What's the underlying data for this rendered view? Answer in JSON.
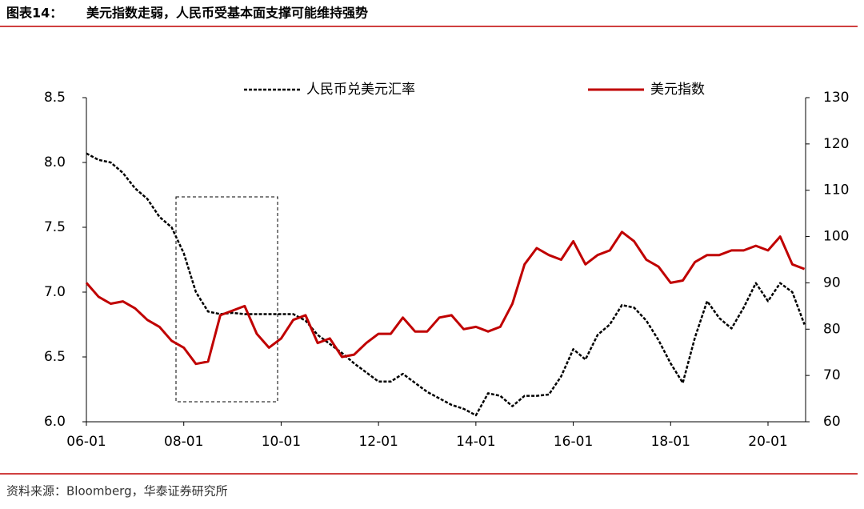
{
  "header": {
    "label": "图表14：",
    "title": "美元指数走弱，人民币受基本面支撑可能维持强势"
  },
  "source": "资料来源：Bloomberg，华泰证券研究所",
  "chart_data": {
    "type": "line",
    "x": [
      "06-01",
      "06-04",
      "06-07",
      "06-10",
      "07-01",
      "07-04",
      "07-07",
      "07-10",
      "08-01",
      "08-04",
      "08-07",
      "08-10",
      "09-01",
      "09-04",
      "09-07",
      "09-10",
      "10-01",
      "10-04",
      "10-07",
      "10-10",
      "11-01",
      "11-04",
      "11-07",
      "11-10",
      "12-01",
      "12-04",
      "12-07",
      "12-10",
      "13-01",
      "13-04",
      "13-07",
      "13-10",
      "14-01",
      "14-04",
      "14-07",
      "14-10",
      "15-01",
      "15-04",
      "15-07",
      "15-10",
      "16-01",
      "16-04",
      "16-07",
      "16-10",
      "17-01",
      "17-04",
      "17-07",
      "17-10",
      "18-01",
      "18-04",
      "18-07",
      "18-10",
      "19-01",
      "19-04",
      "19-07",
      "19-10",
      "20-01",
      "20-04",
      "20-07",
      "20-10"
    ],
    "xticks": [
      "06-01",
      "08-01",
      "10-01",
      "12-01",
      "14-01",
      "16-01",
      "18-01",
      "20-01"
    ],
    "ylim": [
      6.0,
      8.5
    ],
    "yticks": [
      {
        "value": 6,
        "label": "6.0"
      },
      6.5,
      {
        "value": 7,
        "label": "7.0"
      },
      7.5,
      {
        "value": 8,
        "label": "8.0"
      },
      8.5
    ],
    "y2lim": [
      60,
      130
    ],
    "y2ticks": [
      60,
      70,
      80,
      90,
      100,
      110,
      120,
      130
    ],
    "series": [
      {
        "name": "人民币兑美元汇率",
        "color": "#000000",
        "dash": true,
        "values": [
          8.07,
          8.02,
          8.0,
          7.92,
          7.8,
          7.72,
          7.58,
          7.5,
          7.3,
          7.0,
          6.85,
          6.83,
          6.84,
          6.83,
          6.83,
          6.83,
          6.83,
          6.83,
          6.78,
          6.67,
          6.6,
          6.53,
          6.45,
          6.38,
          6.31,
          6.31,
          6.37,
          6.3,
          6.23,
          6.18,
          6.13,
          6.1,
          6.05,
          6.22,
          6.2,
          6.12,
          6.2,
          6.2,
          6.21,
          6.35,
          6.56,
          6.48,
          6.67,
          6.75,
          6.9,
          6.88,
          6.78,
          6.63,
          6.45,
          6.3,
          6.65,
          6.93,
          6.8,
          6.72,
          6.88,
          7.07,
          6.93,
          7.07,
          7.0,
          6.75
        ]
      },
      {
        "name": "美元指数",
        "color": "#c00000",
        "dash": false,
        "axis": "y2",
        "values": [
          90,
          87,
          85.5,
          86,
          84.5,
          82,
          80.5,
          77.5,
          76,
          72.5,
          73,
          83,
          84,
          85,
          79,
          76,
          78,
          82,
          83,
          77,
          78,
          74,
          74.5,
          77,
          79,
          79,
          82.5,
          79.5,
          79.5,
          82.5,
          83,
          80,
          80.5,
          79.5,
          80.5,
          85.5,
          94,
          97.5,
          96,
          95,
          99,
          94,
          96,
          97,
          101,
          99,
          95,
          93.5,
          90,
          90.5,
          94.5,
          96,
          96,
          97,
          97,
          98,
          97,
          100,
          94,
          93
        ]
      }
    ]
  }
}
